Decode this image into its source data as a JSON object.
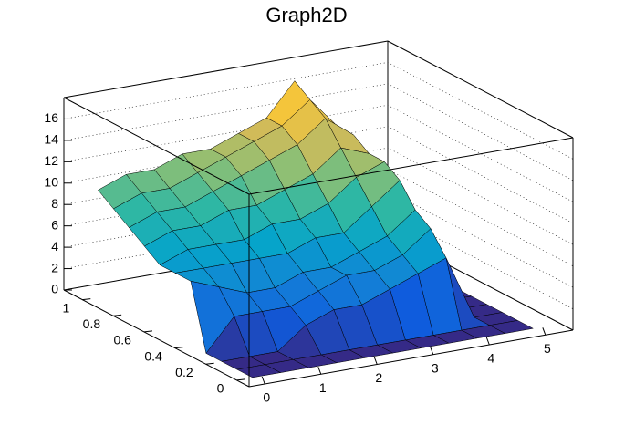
{
  "chart_data": {
    "type": "surface",
    "title": "Graph2D",
    "x": [
      0,
      0.5,
      1,
      1.5,
      2,
      2.5,
      3,
      3.5,
      4,
      4.5,
      5
    ],
    "y": [
      0,
      0.1,
      0.2,
      0.3,
      0.4,
      0.5,
      0.6,
      0.7,
      0.8,
      0.9,
      1
    ],
    "z": [
      [
        0,
        0,
        0,
        0,
        0,
        0,
        0,
        0,
        0,
        0,
        0
      ],
      [
        0,
        0,
        0,
        0,
        0,
        0,
        0,
        0,
        0,
        0,
        0
      ],
      [
        0,
        0,
        0,
        2,
        3,
        3,
        4,
        5,
        6,
        0,
        0
      ],
      [
        0,
        3,
        3,
        3,
        4,
        5,
        5,
        6,
        8,
        0,
        0
      ],
      [
        6,
        5,
        4,
        4,
        5,
        5,
        6,
        7,
        9,
        0,
        0
      ],
      [
        6,
        6,
        6,
        6,
        6,
        7,
        7,
        9,
        11,
        0,
        0
      ],
      [
        6,
        7,
        7,
        7,
        8,
        8,
        9,
        11,
        12,
        0,
        0
      ],
      [
        7,
        8,
        8,
        9,
        9,
        10,
        11,
        13,
        12,
        0,
        0
      ],
      [
        8,
        9,
        9,
        10,
        11,
        12,
        13,
        15,
        13,
        0,
        0
      ],
      [
        9,
        10,
        10,
        11,
        12,
        13,
        14,
        16,
        13,
        0,
        0
      ],
      [
        10,
        11,
        11,
        12,
        12,
        13,
        14,
        17,
        13,
        0,
        0
      ]
    ],
    "xlim": [
      -0.28,
      5.49
    ],
    "ylim": [
      -0.08,
      1.12
    ],
    "zlim": [
      0,
      18
    ],
    "xticks": [
      0,
      1,
      2,
      3,
      4,
      5
    ],
    "yticks": [
      0,
      0.2,
      0.4,
      0.6,
      0.8,
      1
    ],
    "zticks": [
      0,
      2,
      4,
      6,
      8,
      10,
      12,
      14,
      16
    ],
    "grid": true,
    "palette": [
      "#352a87",
      "#0f5cdd",
      "#1481d6",
      "#06a4ca",
      "#2eb7a4",
      "#87bf77",
      "#d1bb59",
      "#fec832",
      "#f9fb0e"
    ]
  }
}
